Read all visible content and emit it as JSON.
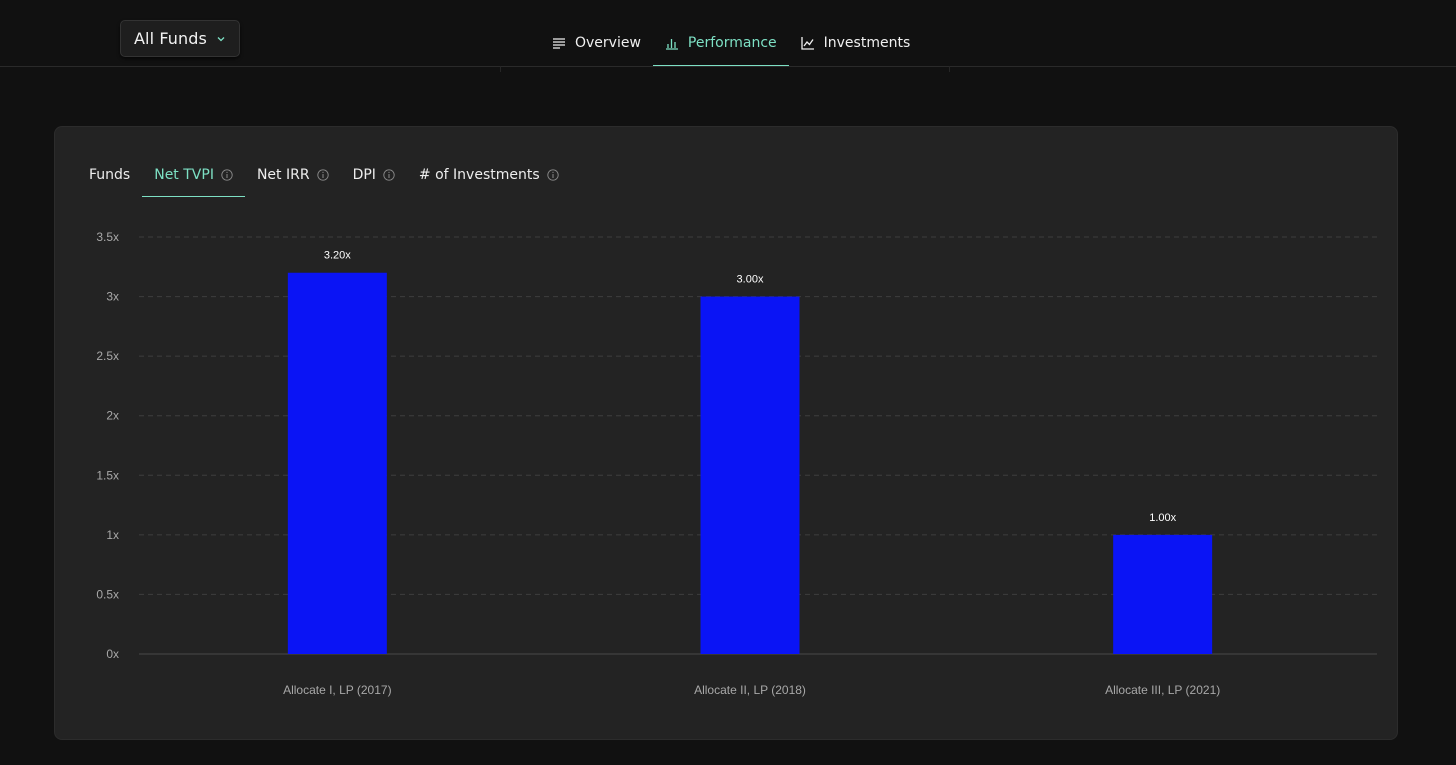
{
  "header": {
    "fund_selector": {
      "value": "All Funds",
      "icon": "chevron-down-icon"
    },
    "nav": [
      {
        "label": "Overview",
        "icon": "list-icon",
        "active": false
      },
      {
        "label": "Performance",
        "icon": "bar-chart-icon",
        "active": true
      },
      {
        "label": "Investments",
        "icon": "line-chart-icon",
        "active": false
      }
    ]
  },
  "tabs": [
    {
      "label": "Funds",
      "info": false,
      "active": false
    },
    {
      "label": "Net TVPI",
      "info": true,
      "active": true
    },
    {
      "label": "Net IRR",
      "info": true,
      "active": false
    },
    {
      "label": "DPI",
      "info": true,
      "active": false
    },
    {
      "label": "# of Investments",
      "info": true,
      "active": false
    }
  ],
  "colors": {
    "accent": "#7de0c4",
    "bar": "#0a14f5",
    "card": "#232323",
    "page": "#111111"
  },
  "chart_data": {
    "type": "bar",
    "categories": [
      "Allocate I, LP (2017)",
      "Allocate II, LP (2018)",
      "Allocate III, LP (2021)"
    ],
    "values": [
      3.2,
      3.0,
      1.0
    ],
    "data_labels": [
      "3.20x",
      "3.00x",
      "1.00x"
    ],
    "y_ticks": [
      0,
      0.5,
      1,
      1.5,
      2,
      2.5,
      3,
      3.5
    ],
    "y_tick_labels": [
      "0x",
      "0.5x",
      "1x",
      "1.5x",
      "2x",
      "2.5x",
      "3x",
      "3.5x"
    ],
    "ylim": [
      0,
      3.5
    ],
    "grid": true,
    "title": "",
    "xlabel": "",
    "ylabel": ""
  }
}
